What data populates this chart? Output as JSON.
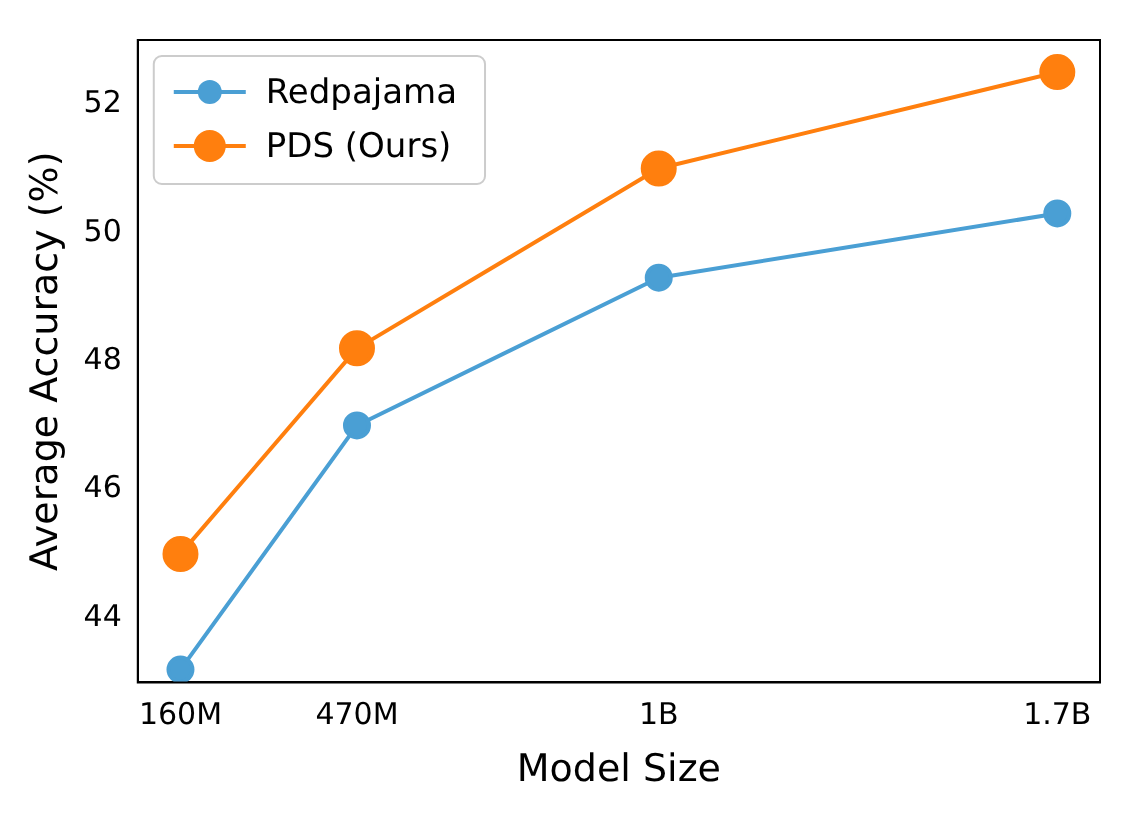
{
  "chart_data": {
    "type": "line",
    "xlabel": "Model Size",
    "ylabel": "Average Accuracy (%)",
    "x": [
      160000000,
      470000000,
      1000000000,
      1700000000
    ],
    "series": [
      {
        "name": "Redpajama",
        "color": "#4a9fd4",
        "values": [
          43.2,
          47.0,
          49.3,
          50.3
        ]
      },
      {
        "name": "PDS (Ours)",
        "color": "#ff7f0e",
        "values": [
          45.0,
          48.2,
          51.0,
          52.5
        ]
      }
    ],
    "xlim": [
      85000000,
      1775000000
    ],
    "xticks": [
      {
        "value": 160000000,
        "label": "160M"
      },
      {
        "value": 470000000,
        "label": "470M"
      },
      {
        "value": 1000000000,
        "label": "1B"
      },
      {
        "value": 1700000000,
        "label": "1.7B"
      }
    ],
    "ylim": [
      43.0,
      53.0
    ],
    "yticks": [
      44,
      46,
      48,
      50,
      52
    ],
    "grid": false,
    "legend": "top left",
    "marker": "circle",
    "line_style": "solid"
  }
}
